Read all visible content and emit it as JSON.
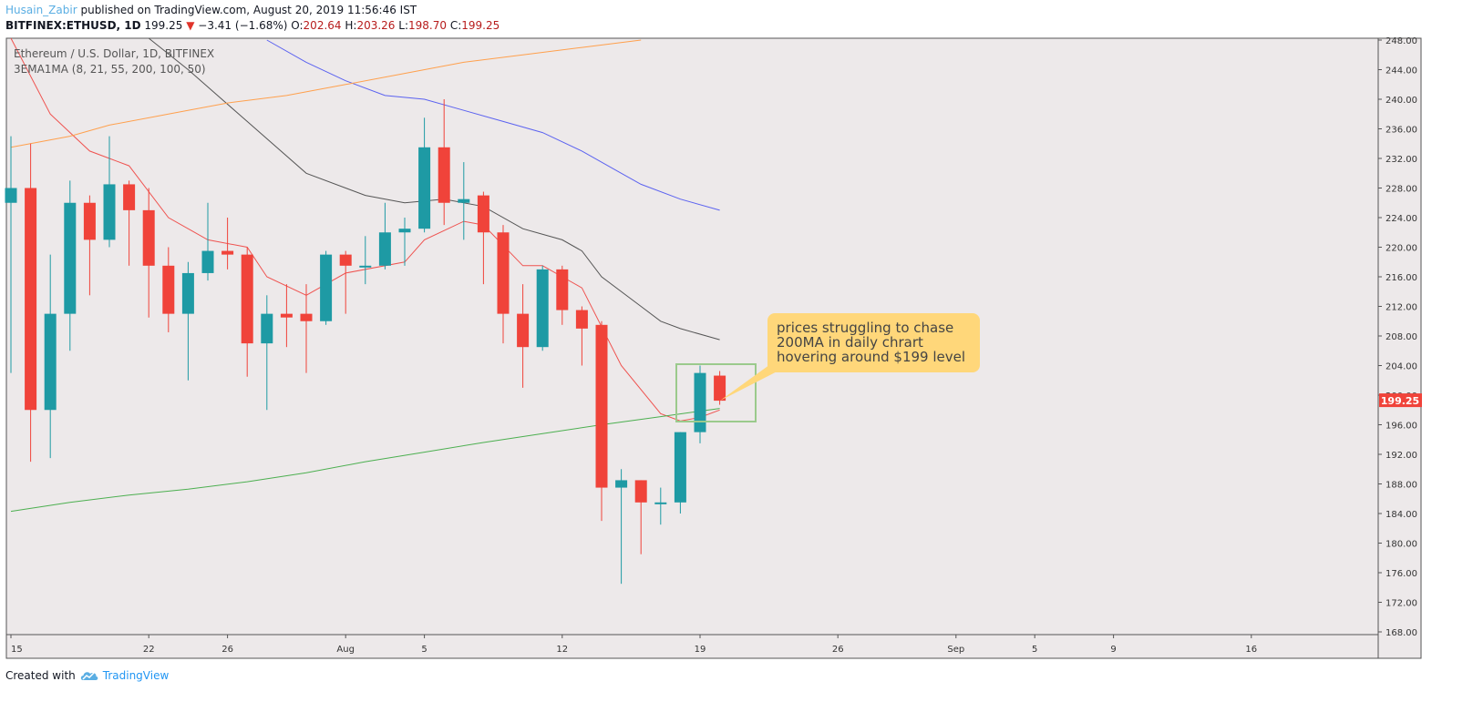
{
  "header": {
    "author": "Husain_Zabir",
    "published_text": "published on TradingView.com, August 20, 2019 11:56:46 IST",
    "symbol": "BITFINEX:ETHUSD, 1D",
    "last": "199.25",
    "change": "−3.41 (−1.68%)",
    "o_label": "O:",
    "o_value": "202.64",
    "h_label": "H:",
    "h_value": "203.26",
    "l_label": "L:",
    "l_value": "198.70",
    "c_label": "C:",
    "c_value": "199.25"
  },
  "legend": {
    "title": "Ethereum / U.S. Dollar, 1D, BITFINEX",
    "indicator": "3EMA1MA (8, 21, 55, 200, 100, 50)"
  },
  "annotation": {
    "lines": [
      "prices struggling to chase",
      "200MA in daily chrart",
      "hovering around $199 level"
    ]
  },
  "price_tag": "199.25",
  "footer": {
    "created_with": "Created with",
    "brand": "TradingView"
  },
  "colors": {
    "up": "#1e9aa4",
    "down": "#f0433a",
    "background": "#ede9ea",
    "ema8": "#ef5350",
    "ema21": "#555555",
    "ema55": "#5b62f0",
    "ma200": "#4caf50",
    "ema100": "#ffa04d",
    "callout": "#ffd77a",
    "box": "#9bca8c"
  },
  "chart_data": {
    "type": "candlestick",
    "ylim": [
      168,
      248
    ],
    "yticks": [
      "168.00",
      "172.00",
      "176.00",
      "180.00",
      "184.00",
      "188.00",
      "192.00",
      "196.00",
      "200.00",
      "204.00",
      "208.00",
      "212.00",
      "216.00",
      "220.00",
      "224.00",
      "228.00",
      "232.00",
      "236.00",
      "240.00",
      "244.00",
      "248.00"
    ],
    "x_ticks": [
      {
        "day": 0,
        "label": "15"
      },
      {
        "day": 7,
        "label": "22"
      },
      {
        "day": 11,
        "label": "26"
      },
      {
        "day": 17,
        "label": "Aug"
      },
      {
        "day": 21,
        "label": "5"
      },
      {
        "day": 28,
        "label": "12"
      },
      {
        "day": 35,
        "label": "19"
      },
      {
        "day": 42,
        "label": "26"
      },
      {
        "day": 48,
        "label": "Sep"
      },
      {
        "day": 52,
        "label": "5"
      },
      {
        "day": 56,
        "label": "9"
      },
      {
        "day": 63,
        "label": "16"
      }
    ],
    "candles": [
      {
        "date": "2019-07-15",
        "o": 226,
        "h": 235,
        "l": 203,
        "c": 228
      },
      {
        "date": "2019-07-16",
        "o": 228,
        "h": 234,
        "l": 191,
        "c": 198
      },
      {
        "date": "2019-07-17",
        "o": 198,
        "h": 219,
        "l": 191.5,
        "c": 211
      },
      {
        "date": "2019-07-18",
        "o": 211,
        "h": 229,
        "l": 206,
        "c": 226
      },
      {
        "date": "2019-07-19",
        "o": 226,
        "h": 227,
        "l": 213.5,
        "c": 221
      },
      {
        "date": "2019-07-20",
        "o": 221,
        "h": 235,
        "l": 220,
        "c": 228.5
      },
      {
        "date": "2019-07-21",
        "o": 228.5,
        "h": 229,
        "l": 217.5,
        "c": 225
      },
      {
        "date": "2019-07-22",
        "o": 225,
        "h": 228,
        "l": 210.5,
        "c": 217.5
      },
      {
        "date": "2019-07-23",
        "o": 217.5,
        "h": 220,
        "l": 208.5,
        "c": 211
      },
      {
        "date": "2019-07-24",
        "o": 211,
        "h": 218,
        "l": 202,
        "c": 216.5
      },
      {
        "date": "2019-07-25",
        "o": 216.5,
        "h": 226,
        "l": 215.5,
        "c": 219.5
      },
      {
        "date": "2019-07-26",
        "o": 219.5,
        "h": 224,
        "l": 217,
        "c": 219
      },
      {
        "date": "2019-07-27",
        "o": 219,
        "h": 220,
        "l": 202.5,
        "c": 207
      },
      {
        "date": "2019-07-28",
        "o": 207,
        "h": 213.5,
        "l": 198,
        "c": 211
      },
      {
        "date": "2019-07-29",
        "o": 211,
        "h": 215,
        "l": 206.5,
        "c": 210.5
      },
      {
        "date": "2019-07-30",
        "o": 211,
        "h": 215,
        "l": 203,
        "c": 210
      },
      {
        "date": "2019-07-31",
        "o": 210,
        "h": 219.5,
        "l": 209.5,
        "c": 219
      },
      {
        "date": "2019-08-01",
        "o": 219,
        "h": 219.5,
        "l": 211,
        "c": 217.5
      },
      {
        "date": "2019-08-02",
        "o": 217.5,
        "h": 221.5,
        "l": 215,
        "c": 217.5
      },
      {
        "date": "2019-08-03",
        "o": 217.5,
        "h": 226,
        "l": 217,
        "c": 222
      },
      {
        "date": "2019-08-04",
        "o": 222,
        "h": 224,
        "l": 217.5,
        "c": 222.5
      },
      {
        "date": "2019-08-05",
        "o": 222.5,
        "h": 237.5,
        "l": 222,
        "c": 233.5
      },
      {
        "date": "2019-08-06",
        "o": 233.5,
        "h": 240,
        "l": 223,
        "c": 226
      },
      {
        "date": "2019-08-07",
        "o": 226,
        "h": 231.5,
        "l": 221,
        "c": 226.5
      },
      {
        "date": "2019-08-08",
        "o": 227,
        "h": 227.5,
        "l": 215,
        "c": 222
      },
      {
        "date": "2019-08-09",
        "o": 222,
        "h": 223,
        "l": 207,
        "c": 211
      },
      {
        "date": "2019-08-10",
        "o": 211,
        "h": 215,
        "l": 201,
        "c": 206.5
      },
      {
        "date": "2019-08-11",
        "o": 206.5,
        "h": 217.5,
        "l": 206,
        "c": 217
      },
      {
        "date": "2019-08-12",
        "o": 217,
        "h": 217.5,
        "l": 209.5,
        "c": 211.5
      },
      {
        "date": "2019-08-13",
        "o": 211.5,
        "h": 212,
        "l": 204,
        "c": 209
      },
      {
        "date": "2019-08-14",
        "o": 209.5,
        "h": 210,
        "l": 183,
        "c": 187.5
      },
      {
        "date": "2019-08-15",
        "o": 187.5,
        "h": 190,
        "l": 174.5,
        "c": 188.5
      },
      {
        "date": "2019-08-16",
        "o": 188.5,
        "h": 188.5,
        "l": 178.5,
        "c": 185.5
      },
      {
        "date": "2019-08-17",
        "o": 185.5,
        "h": 187.5,
        "l": 182.5,
        "c": 185.5
      },
      {
        "date": "2019-08-18",
        "o": 185.5,
        "h": 195,
        "l": 184,
        "c": 195
      },
      {
        "date": "2019-08-19",
        "o": 195,
        "h": 204,
        "l": 193.5,
        "c": 203
      },
      {
        "date": "2019-08-20",
        "o": 202.64,
        "h": 203.26,
        "l": 198.7,
        "c": 199.25
      }
    ],
    "lines": [
      {
        "name": "EMA 8",
        "color": "#ef5350",
        "points": [
          [
            0,
            252
          ],
          [
            2,
            238
          ],
          [
            4,
            233
          ],
          [
            5,
            232
          ],
          [
            6,
            231
          ],
          [
            8,
            224
          ],
          [
            10,
            221
          ],
          [
            12,
            220
          ],
          [
            13,
            216
          ],
          [
            15,
            213.5
          ],
          [
            17,
            216.5
          ],
          [
            20,
            218
          ],
          [
            21,
            221
          ],
          [
            23,
            223.5
          ],
          [
            24,
            223
          ],
          [
            26,
            217.5
          ],
          [
            27,
            217.5
          ],
          [
            28,
            216
          ],
          [
            29,
            214.5
          ],
          [
            31,
            204
          ],
          [
            33,
            197.5
          ],
          [
            34,
            196.5
          ],
          [
            35,
            197
          ],
          [
            36,
            198
          ]
        ]
      },
      {
        "name": "EMA 21",
        "color": "#555555",
        "points": [
          [
            7,
            251
          ],
          [
            9,
            244
          ],
          [
            12,
            237
          ],
          [
            15,
            230
          ],
          [
            18,
            227
          ],
          [
            20,
            226
          ],
          [
            22,
            226.5
          ],
          [
            24,
            225.5
          ],
          [
            26,
            222.5
          ],
          [
            28,
            221
          ],
          [
            29,
            219.5
          ],
          [
            30,
            216
          ],
          [
            32,
            212
          ],
          [
            33,
            210
          ],
          [
            34,
            209
          ],
          [
            36,
            207.5
          ]
        ]
      },
      {
        "name": "EMA 55",
        "color": "#5b62f0",
        "points": [
          [
            13,
            248
          ],
          [
            15,
            245
          ],
          [
            17,
            242.5
          ],
          [
            19,
            240.5
          ],
          [
            21,
            240
          ],
          [
            23,
            238.5
          ],
          [
            25,
            237
          ],
          [
            27,
            235.5
          ],
          [
            29,
            233
          ],
          [
            31,
            230
          ],
          [
            32,
            228.5
          ],
          [
            34,
            226.5
          ],
          [
            36,
            225
          ]
        ]
      },
      {
        "name": "EMA 100",
        "color": "#ffa04d",
        "points": [
          [
            0,
            233.5
          ],
          [
            3,
            235
          ],
          [
            5,
            236.5
          ],
          [
            8,
            238
          ],
          [
            11,
            239.5
          ],
          [
            14,
            240.5
          ],
          [
            17,
            242
          ],
          [
            20,
            243.5
          ],
          [
            23,
            245
          ],
          [
            26,
            246
          ],
          [
            29,
            247
          ],
          [
            32,
            248
          ]
        ]
      },
      {
        "name": "MA 200",
        "color": "#4caf50",
        "points": [
          [
            0,
            184.3
          ],
          [
            3,
            185.5
          ],
          [
            6,
            186.5
          ],
          [
            9,
            187.3
          ],
          [
            12,
            188.3
          ],
          [
            15,
            189.5
          ],
          [
            18,
            191
          ],
          [
            21,
            192.3
          ],
          [
            24,
            193.6
          ],
          [
            27,
            194.8
          ],
          [
            30,
            196
          ],
          [
            33,
            197.1
          ],
          [
            36,
            198.2
          ]
        ]
      }
    ]
  }
}
